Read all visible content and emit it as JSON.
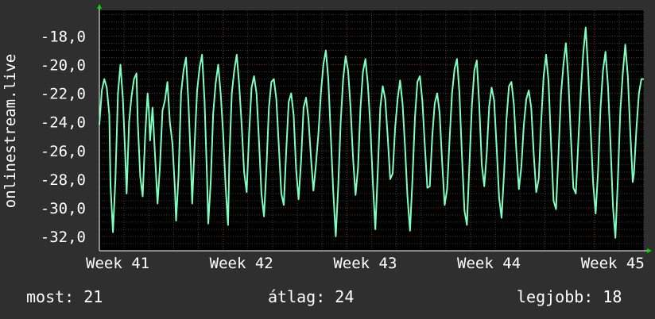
{
  "chart_data": {
    "type": "line",
    "ylabel": "onlinestream.live",
    "ylim": [
      -33,
      -16.2
    ],
    "yticks": [
      -18,
      -20,
      -22,
      -24,
      -26,
      -28,
      -30,
      -32
    ],
    "ytick_labels": [
      "-18,0",
      "-20,0",
      "-22,0",
      "-24,0",
      "-26,0",
      "-28,0",
      "-30,0",
      "-32,0"
    ],
    "xlim": [
      0,
      4.4
    ],
    "xticks": [
      0,
      1,
      2,
      3,
      4
    ],
    "xtick_labels": [
      "Week 41",
      "Week 42",
      "Week 43",
      "Week 44",
      "Week 45"
    ],
    "grid": true,
    "colors": {
      "background": "#2f2f2f",
      "plot": "#000000",
      "line": "#7fffbf",
      "grid": "#3a3a3a",
      "grid_major": "#6e2a2a",
      "arrow": "#00dd00"
    },
    "series_points": [
      [
        0.0,
        -24.2
      ],
      [
        0.02,
        -21.8
      ],
      [
        0.04,
        -21.0
      ],
      [
        0.06,
        -21.6
      ],
      [
        0.08,
        -23.5
      ],
      [
        0.09,
        -28.4
      ],
      [
        0.11,
        -31.7
      ],
      [
        0.13,
        -28.0
      ],
      [
        0.15,
        -22.0
      ],
      [
        0.17,
        -20.0
      ],
      [
        0.19,
        -22.4
      ],
      [
        0.21,
        -26.5
      ],
      [
        0.22,
        -29.0
      ],
      [
        0.24,
        -24.0
      ],
      [
        0.26,
        -22.2
      ],
      [
        0.28,
        -21.0
      ],
      [
        0.3,
        -20.6
      ],
      [
        0.31,
        -24.0
      ],
      [
        0.33,
        -27.8
      ],
      [
        0.35,
        -29.2
      ],
      [
        0.37,
        -25.0
      ],
      [
        0.39,
        -22.0
      ],
      [
        0.4,
        -23.2
      ],
      [
        0.41,
        -25.3
      ],
      [
        0.43,
        -23.0
      ],
      [
        0.45,
        -26.4
      ],
      [
        0.47,
        -29.7
      ],
      [
        0.49,
        -27.0
      ],
      [
        0.51,
        -23.2
      ],
      [
        0.53,
        -22.5
      ],
      [
        0.55,
        -21.2
      ],
      [
        0.57,
        -24.0
      ],
      [
        0.59,
        -25.5
      ],
      [
        0.61,
        -28.6
      ],
      [
        0.62,
        -30.9
      ],
      [
        0.64,
        -27.8
      ],
      [
        0.66,
        -22.0
      ],
      [
        0.68,
        -20.4
      ],
      [
        0.7,
        -19.5
      ],
      [
        0.72,
        -22.7
      ],
      [
        0.74,
        -27.0
      ],
      [
        0.75,
        -29.7
      ],
      [
        0.77,
        -25.5
      ],
      [
        0.79,
        -21.8
      ],
      [
        0.81,
        -20.2
      ],
      [
        0.83,
        -19.3
      ],
      [
        0.85,
        -22.5
      ],
      [
        0.87,
        -27.8
      ],
      [
        0.88,
        -31.1
      ],
      [
        0.9,
        -28.2
      ],
      [
        0.92,
        -23.4
      ],
      [
        0.94,
        -21.3
      ],
      [
        0.96,
        -20.0
      ],
      [
        0.98,
        -22.0
      ],
      [
        1.0,
        -24.8
      ],
      [
        1.02,
        -28.5
      ],
      [
        1.04,
        -31.2
      ],
      [
        1.05,
        -26.7
      ],
      [
        1.07,
        -22.0
      ],
      [
        1.09,
        -20.4
      ],
      [
        1.11,
        -19.3
      ],
      [
        1.13,
        -21.4
      ],
      [
        1.15,
        -24.2
      ],
      [
        1.17,
        -27.5
      ],
      [
        1.19,
        -28.9
      ],
      [
        1.21,
        -24.8
      ],
      [
        1.23,
        -21.6
      ],
      [
        1.25,
        -20.8
      ],
      [
        1.27,
        -22.0
      ],
      [
        1.29,
        -25.3
      ],
      [
        1.31,
        -29.0
      ],
      [
        1.33,
        -30.6
      ],
      [
        1.35,
        -27.2
      ],
      [
        1.37,
        -23.0
      ],
      [
        1.39,
        -21.2
      ],
      [
        1.41,
        -21.0
      ],
      [
        1.43,
        -22.4
      ],
      [
        1.45,
        -25.6
      ],
      [
        1.47,
        -29.0
      ],
      [
        1.49,
        -29.8
      ],
      [
        1.51,
        -26.0
      ],
      [
        1.53,
        -22.6
      ],
      [
        1.55,
        -22.0
      ],
      [
        1.57,
        -23.5
      ],
      [
        1.59,
        -27.3
      ],
      [
        1.61,
        -29.4
      ],
      [
        1.63,
        -26.7
      ],
      [
        1.65,
        -23.0
      ],
      [
        1.67,
        -22.3
      ],
      [
        1.69,
        -23.8
      ],
      [
        1.71,
        -26.5
      ],
      [
        1.73,
        -28.8
      ],
      [
        1.75,
        -27.0
      ],
      [
        1.77,
        -24.8
      ],
      [
        1.79,
        -22.0
      ],
      [
        1.81,
        -20.0
      ],
      [
        1.83,
        -19.0
      ],
      [
        1.85,
        -21.0
      ],
      [
        1.87,
        -24.9
      ],
      [
        1.89,
        -28.8
      ],
      [
        1.91,
        -32.0
      ],
      [
        1.93,
        -28.5
      ],
      [
        1.95,
        -24.0
      ],
      [
        1.97,
        -21.0
      ],
      [
        1.99,
        -19.4
      ],
      [
        2.01,
        -20.4
      ],
      [
        2.03,
        -23.0
      ],
      [
        2.05,
        -26.5
      ],
      [
        2.07,
        -29.1
      ],
      [
        2.09,
        -27.2
      ],
      [
        2.11,
        -23.0
      ],
      [
        2.13,
        -20.5
      ],
      [
        2.15,
        -19.6
      ],
      [
        2.17,
        -21.4
      ],
      [
        2.19,
        -24.3
      ],
      [
        2.21,
        -28.3
      ],
      [
        2.23,
        -31.5
      ],
      [
        2.25,
        -27.4
      ],
      [
        2.27,
        -23.0
      ],
      [
        2.29,
        -21.5
      ],
      [
        2.31,
        -22.4
      ],
      [
        2.33,
        -25.0
      ],
      [
        2.35,
        -28.0
      ],
      [
        2.37,
        -27.6
      ],
      [
        2.39,
        -24.4
      ],
      [
        2.41,
        -22.4
      ],
      [
        2.43,
        -21.1
      ],
      [
        2.45,
        -22.7
      ],
      [
        2.47,
        -25.7
      ],
      [
        2.49,
        -29.2
      ],
      [
        2.51,
        -31.6
      ],
      [
        2.53,
        -28.0
      ],
      [
        2.55,
        -23.7
      ],
      [
        2.57,
        -21.2
      ],
      [
        2.59,
        -20.8
      ],
      [
        2.61,
        -22.5
      ],
      [
        2.63,
        -25.6
      ],
      [
        2.65,
        -28.6
      ],
      [
        2.67,
        -28.5
      ],
      [
        2.69,
        -25.0
      ],
      [
        2.71,
        -22.7
      ],
      [
        2.73,
        -22.0
      ],
      [
        2.75,
        -23.4
      ],
      [
        2.77,
        -26.8
      ],
      [
        2.79,
        -29.8
      ],
      [
        2.81,
        -28.7
      ],
      [
        2.83,
        -25.2
      ],
      [
        2.85,
        -22.0
      ],
      [
        2.87,
        -20.3
      ],
      [
        2.89,
        -19.6
      ],
      [
        2.91,
        -22.0
      ],
      [
        2.93,
        -26.3
      ],
      [
        2.95,
        -30.2
      ],
      [
        2.97,
        -31.2
      ],
      [
        2.99,
        -27.0
      ],
      [
        3.01,
        -22.9
      ],
      [
        3.03,
        -20.4
      ],
      [
        3.05,
        -19.7
      ],
      [
        3.07,
        -22.8
      ],
      [
        3.09,
        -27.0
      ],
      [
        3.11,
        -28.5
      ],
      [
        3.13,
        -26.2
      ],
      [
        3.15,
        -22.9
      ],
      [
        3.17,
        -21.6
      ],
      [
        3.19,
        -22.5
      ],
      [
        3.21,
        -25.7
      ],
      [
        3.23,
        -29.3
      ],
      [
        3.25,
        -30.7
      ],
      [
        3.27,
        -27.6
      ],
      [
        3.29,
        -23.8
      ],
      [
        3.31,
        -21.5
      ],
      [
        3.33,
        -21.2
      ],
      [
        3.35,
        -22.8
      ],
      [
        3.37,
        -26.0
      ],
      [
        3.39,
        -28.7
      ],
      [
        3.41,
        -27.1
      ],
      [
        3.43,
        -24.2
      ],
      [
        3.45,
        -22.4
      ],
      [
        3.47,
        -21.8
      ],
      [
        3.49,
        -23.0
      ],
      [
        3.51,
        -26.2
      ],
      [
        3.53,
        -28.9
      ],
      [
        3.55,
        -28.0
      ],
      [
        3.57,
        -24.0
      ],
      [
        3.59,
        -20.8
      ],
      [
        3.61,
        -19.3
      ],
      [
        3.63,
        -21.2
      ],
      [
        3.65,
        -25.5
      ],
      [
        3.67,
        -29.5
      ],
      [
        3.69,
        -30.1
      ],
      [
        3.71,
        -26.2
      ],
      [
        3.73,
        -22.1
      ],
      [
        3.75,
        -20.0
      ],
      [
        3.77,
        -18.5
      ],
      [
        3.79,
        -21.0
      ],
      [
        3.81,
        -25.0
      ],
      [
        3.83,
        -28.6
      ],
      [
        3.85,
        -29.0
      ],
      [
        3.87,
        -25.4
      ],
      [
        3.89,
        -22.0
      ],
      [
        3.91,
        -19.2
      ],
      [
        3.93,
        -17.4
      ],
      [
        3.95,
        -20.4
      ],
      [
        3.97,
        -24.6
      ],
      [
        3.99,
        -28.3
      ],
      [
        4.01,
        -30.4
      ],
      [
        4.03,
        -27.4
      ],
      [
        4.05,
        -23.0
      ],
      [
        4.07,
        -20.4
      ],
      [
        4.09,
        -19.1
      ],
      [
        4.11,
        -21.5
      ],
      [
        4.13,
        -25.5
      ],
      [
        4.15,
        -29.9
      ],
      [
        4.17,
        -32.1
      ],
      [
        4.19,
        -28.0
      ],
      [
        4.21,
        -23.2
      ],
      [
        4.23,
        -20.6
      ],
      [
        4.25,
        -18.6
      ],
      [
        4.27,
        -20.8
      ],
      [
        4.29,
        -24.7
      ],
      [
        4.31,
        -28.2
      ],
      [
        4.32,
        -27.6
      ],
      [
        4.34,
        -24.4
      ],
      [
        4.36,
        -22.0
      ],
      [
        4.38,
        -21.0
      ],
      [
        4.4,
        -21.0
      ]
    ]
  },
  "stats": {
    "current": "most: 21",
    "average": "átlag: 24",
    "best": "legjobb: 18"
  }
}
